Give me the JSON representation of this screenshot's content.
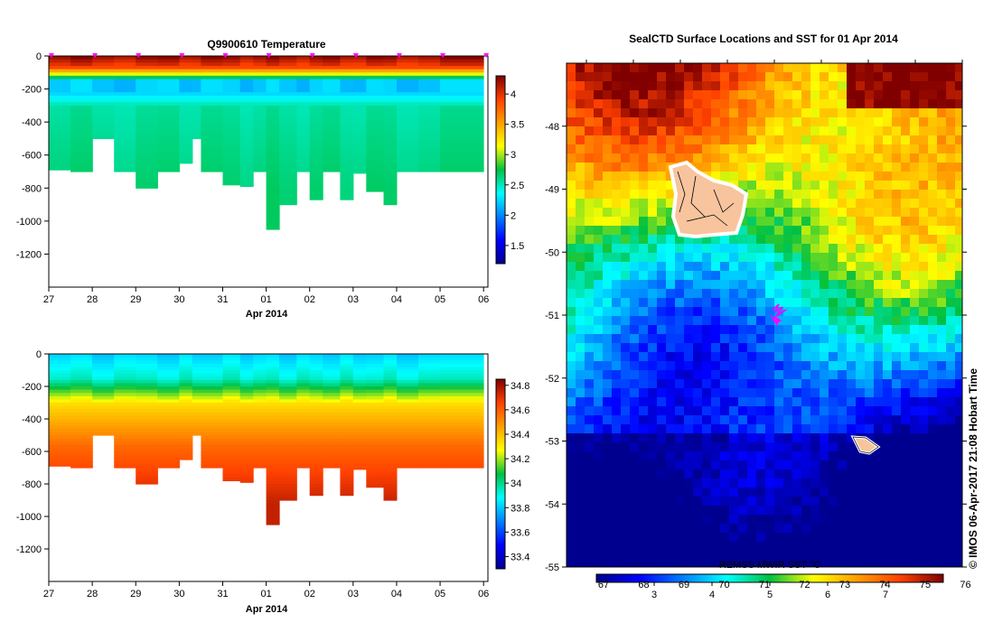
{
  "chart_data": [
    {
      "type": "heatmap",
      "title": "Q9900610  Temperature",
      "xlabel": "Apr 2014",
      "ylabel": "",
      "x_ticks": [
        "27",
        "28",
        "29",
        "30",
        "31",
        "01",
        "02",
        "03",
        "04",
        "05",
        "06"
      ],
      "y_ticks": [
        "0",
        "-200",
        "-400",
        "-600",
        "-800",
        "-1000",
        "-1200"
      ],
      "ylim": [
        -1400,
        0
      ],
      "xlim": [
        27,
        37.1
      ],
      "colorbar_ticks": [
        "4",
        "3.5",
        "3",
        "2.5",
        "2",
        "1.5"
      ],
      "colorbar_range": [
        1.2,
        4.3
      ],
      "profile_times": [
        27.0,
        27.5,
        28.0,
        28.5,
        29.0,
        29.5,
        30.0,
        30.3,
        30.5,
        31.0,
        31.4,
        31.7,
        32.0,
        32.3,
        32.7,
        33.0,
        33.3,
        33.7,
        34.0,
        34.3,
        34.7,
        35.0,
        35.5,
        36.0
      ],
      "profile_max_depth": [
        -690,
        -700,
        -500,
        -700,
        -800,
        -700,
        -650,
        -500,
        -700,
        -780,
        -790,
        -700,
        -1050,
        -900,
        -700,
        -870,
        -700,
        -870,
        -710,
        -820,
        -900,
        -700,
        -700,
        -700
      ],
      "surface_value": 4.2,
      "deep_value": 2.5
    },
    {
      "type": "heatmap",
      "title": "",
      "xlabel": "Apr 2014",
      "ylabel": "",
      "x_ticks": [
        "27",
        "28",
        "29",
        "30",
        "31",
        "01",
        "02",
        "03",
        "04",
        "05",
        "06"
      ],
      "y_ticks": [
        "0",
        "-200",
        "-400",
        "-600",
        "-800",
        "-1000",
        "-1200"
      ],
      "ylim": [
        -1400,
        0
      ],
      "xlim": [
        27,
        37.1
      ],
      "colorbar_ticks": [
        "34.8",
        "34.6",
        "34.4",
        "34.2",
        "34",
        "33.8",
        "33.6",
        "33.4"
      ],
      "colorbar_range": [
        33.3,
        34.85
      ],
      "profile_times": [
        27.0,
        27.5,
        28.0,
        28.5,
        29.0,
        29.5,
        30.0,
        30.3,
        30.5,
        31.0,
        31.4,
        31.7,
        32.0,
        32.3,
        32.7,
        33.0,
        33.3,
        33.7,
        34.0,
        34.3,
        34.7,
        35.0,
        35.5,
        36.0
      ],
      "profile_max_depth": [
        -690,
        -700,
        -500,
        -700,
        -800,
        -700,
        -650,
        -500,
        -700,
        -780,
        -790,
        -700,
        -1050,
        -900,
        -700,
        -870,
        -700,
        -870,
        -710,
        -820,
        -900,
        -700,
        -700,
        -700
      ],
      "surface_value": 33.8,
      "deep_value": 34.7
    },
    {
      "type": "heatmap",
      "title": "SealCTD Surface Locations and SST for 01 Apr 2014",
      "xlabel": "",
      "ylabel": "",
      "y_ticks": [
        "-48",
        "-49",
        "-50",
        "-51",
        "-52",
        "-53",
        "-54",
        "-55"
      ],
      "ylim": [
        -55,
        -47
      ],
      "colorbar_label": "REMSS MWIR SST °C",
      "colorbar_top_ticks": [
        "67",
        "68",
        "69",
        "70",
        "71",
        "72",
        "73",
        "74",
        "75",
        "76"
      ],
      "colorbar_bottom_ticks": [
        "3",
        "4",
        "5",
        "6",
        "7"
      ],
      "colorbar_range": [
        2.0,
        8.0
      ],
      "seal_location": {
        "lat": -51.0
      }
    }
  ],
  "credit": "© IMOS 06-Apr-2017 21:08 Hobart Time",
  "colors": {
    "land": "#f7c49e",
    "markers": "#ff00ff",
    "axis": "#000000"
  }
}
